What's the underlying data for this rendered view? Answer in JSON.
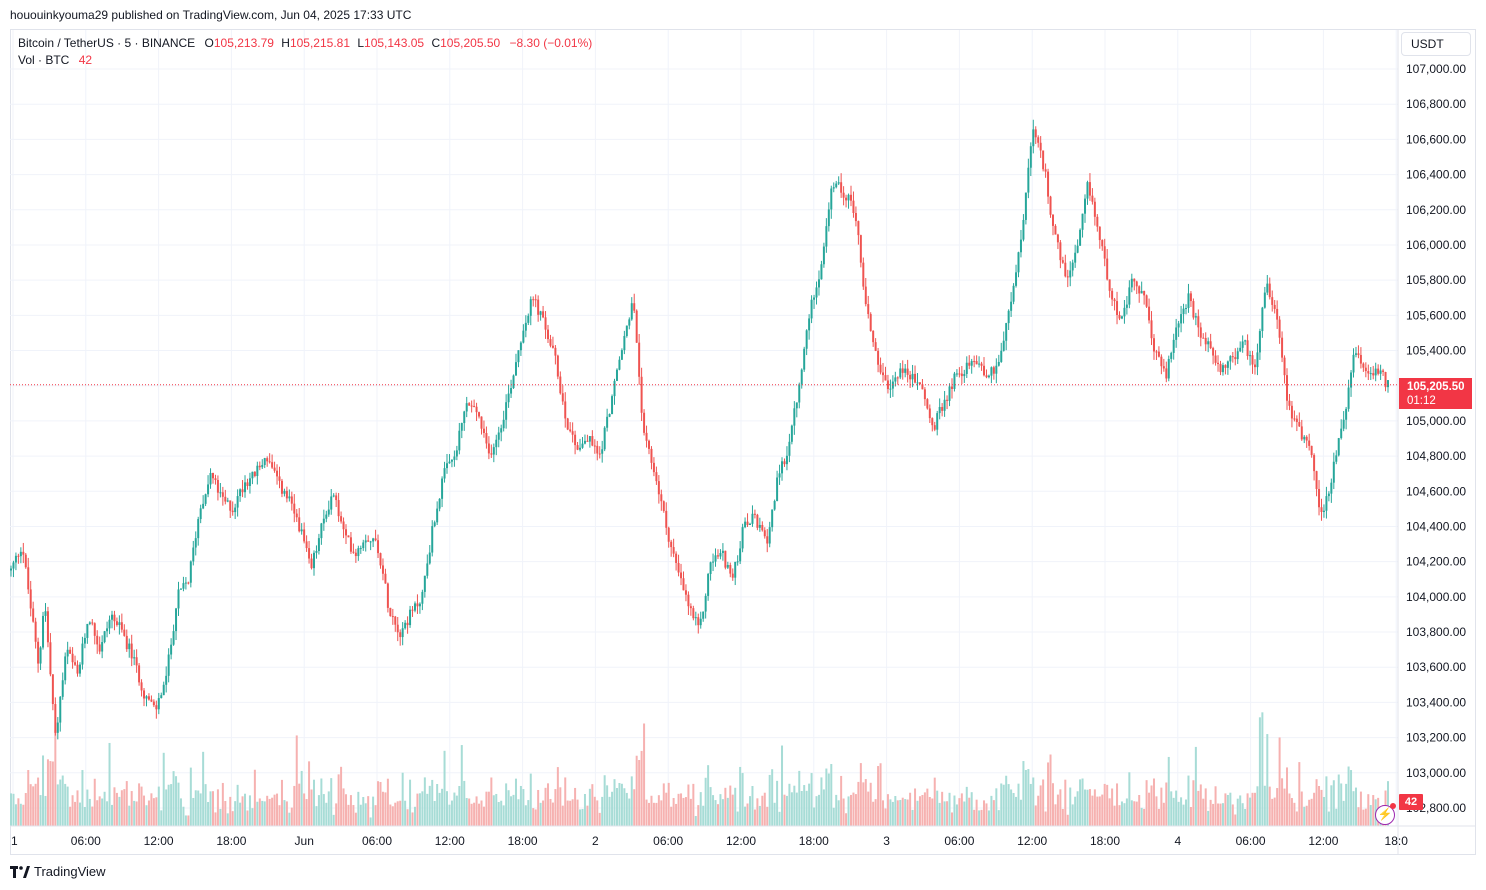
{
  "publish_line": "hououinkyouma29 published on TradingView.com, Jun 04, 2025 17:33 UTC",
  "legend": {
    "symbol": "Bitcoin / TetherUS · 5 · BINANCE",
    "open_label": "O",
    "open": "105,213.79",
    "high_label": "H",
    "high": "105,215.81",
    "low_label": "L",
    "low": "105,143.05",
    "close_label": "C",
    "close": "105,205.50",
    "change": "−8.30 (−0.01%)",
    "volume_label": "Vol · BTC",
    "volume_value": "42"
  },
  "currency_button": "USDT",
  "last_price": {
    "price": "105,205.50",
    "countdown": "01:12"
  },
  "volume_badge": "42",
  "footer_brand": "TradingView",
  "colors": {
    "up": "#26a69a",
    "down": "#ef5350",
    "up_vol": "#a7dcd6",
    "down_vol": "#f6b1b0",
    "badge": "#f23645",
    "grid": "#f0f3fa",
    "bolt": "#9c27b0"
  },
  "icons": {
    "bolt": "lightning-bolt-icon",
    "logo": "tradingview-logo-icon"
  },
  "chart_data": {
    "type": "candlestick",
    "title": "Bitcoin / TetherUS · 5 · BINANCE",
    "y_ticks": [
      "107,000.00",
      "106,800.00",
      "106,600.00",
      "106,400.00",
      "106,200.00",
      "106,000.00",
      "105,800.00",
      "105,600.00",
      "105,400.00",
      "105,200.00",
      "105,000.00",
      "104,800.00",
      "104,600.00",
      "104,400.00",
      "104,200.00",
      "104,000.00",
      "103,800.00",
      "103,600.00",
      "103,400.00",
      "103,200.00",
      "103,000.00",
      "102,800.00"
    ],
    "x_ticks": [
      "1",
      "06:00",
      "12:00",
      "18:00",
      "Jun",
      "06:00",
      "12:00",
      "18:00",
      "2",
      "06:00",
      "12:00",
      "18:00",
      "3",
      "06:00",
      "12:00",
      "18:00",
      "4",
      "06:00",
      "12:00",
      "18:0"
    ],
    "ylim": [
      102800,
      107000
    ],
    "last_price": 105205.5,
    "path_points": [
      [
        0,
        104150
      ],
      [
        2,
        104300
      ],
      [
        5,
        103600
      ],
      [
        6,
        104000
      ],
      [
        8,
        103200
      ],
      [
        10,
        103700
      ],
      [
        12,
        103550
      ],
      [
        14,
        103900
      ],
      [
        16,
        103700
      ],
      [
        18,
        103900
      ],
      [
        20,
        103800
      ],
      [
        22,
        103650
      ],
      [
        24,
        103450
      ],
      [
        26,
        103350
      ],
      [
        28,
        103550
      ],
      [
        30,
        104000
      ],
      [
        32,
        104100
      ],
      [
        34,
        104500
      ],
      [
        36,
        104700
      ],
      [
        38,
        104550
      ],
      [
        40,
        104500
      ],
      [
        42,
        104650
      ],
      [
        44,
        104700
      ],
      [
        46,
        104800
      ],
      [
        48,
        104650
      ],
      [
        50,
        104550
      ],
      [
        52,
        104400
      ],
      [
        54,
        104150
      ],
      [
        56,
        104400
      ],
      [
        58,
        104600
      ],
      [
        60,
        104350
      ],
      [
        62,
        104250
      ],
      [
        64,
        104350
      ],
      [
        66,
        104300
      ],
      [
        68,
        103950
      ],
      [
        70,
        103800
      ],
      [
        72,
        103900
      ],
      [
        74,
        104000
      ],
      [
        76,
        104400
      ],
      [
        78,
        104700
      ],
      [
        80,
        104800
      ],
      [
        82,
        105100
      ],
      [
        84,
        105050
      ],
      [
        86,
        104800
      ],
      [
        88,
        104950
      ],
      [
        90,
        105200
      ],
      [
        92,
        105500
      ],
      [
        94,
        105700
      ],
      [
        96,
        105550
      ],
      [
        98,
        105350
      ],
      [
        100,
        105000
      ],
      [
        102,
        104850
      ],
      [
        104,
        104900
      ],
      [
        106,
        104800
      ],
      [
        108,
        105100
      ],
      [
        110,
        105400
      ],
      [
        112,
        105700
      ],
      [
        114,
        104900
      ],
      [
        116,
        104700
      ],
      [
        118,
        104400
      ],
      [
        120,
        104150
      ],
      [
        122,
        103950
      ],
      [
        124,
        103800
      ],
      [
        126,
        104200
      ],
      [
        128,
        104250
      ],
      [
        130,
        104100
      ],
      [
        132,
        104400
      ],
      [
        134,
        104450
      ],
      [
        136,
        104300
      ],
      [
        138,
        104650
      ],
      [
        140,
        104850
      ],
      [
        142,
        105200
      ],
      [
        144,
        105650
      ],
      [
        146,
        105900
      ],
      [
        148,
        106350
      ],
      [
        150,
        106300
      ],
      [
        152,
        106200
      ],
      [
        154,
        105650
      ],
      [
        156,
        105350
      ],
      [
        158,
        105150
      ],
      [
        160,
        105300
      ],
      [
        162,
        105250
      ],
      [
        164,
        105200
      ],
      [
        166,
        104950
      ],
      [
        168,
        105100
      ],
      [
        170,
        105250
      ],
      [
        172,
        105300
      ],
      [
        174,
        105350
      ],
      [
        176,
        105250
      ],
      [
        178,
        105350
      ],
      [
        180,
        105650
      ],
      [
        182,
        106050
      ],
      [
        184,
        106650
      ],
      [
        186,
        106450
      ],
      [
        188,
        106050
      ],
      [
        190,
        105800
      ],
      [
        192,
        105950
      ],
      [
        194,
        106350
      ],
      [
        196,
        106050
      ],
      [
        198,
        105750
      ],
      [
        200,
        105550
      ],
      [
        202,
        105800
      ],
      [
        204,
        105700
      ],
      [
        206,
        105400
      ],
      [
        208,
        105250
      ],
      [
        210,
        105550
      ],
      [
        212,
        105700
      ],
      [
        214,
        105500
      ],
      [
        216,
        105400
      ],
      [
        218,
        105300
      ],
      [
        220,
        105350
      ],
      [
        222,
        105450
      ],
      [
        224,
        105300
      ],
      [
        226,
        105800
      ],
      [
        228,
        105600
      ],
      [
        230,
        105100
      ],
      [
        232,
        104950
      ],
      [
        234,
        104850
      ],
      [
        236,
        104450
      ],
      [
        238,
        104700
      ],
      [
        240,
        105000
      ],
      [
        242,
        105400
      ],
      [
        244,
        105250
      ],
      [
        246,
        105300
      ],
      [
        248,
        105200
      ]
    ]
  }
}
